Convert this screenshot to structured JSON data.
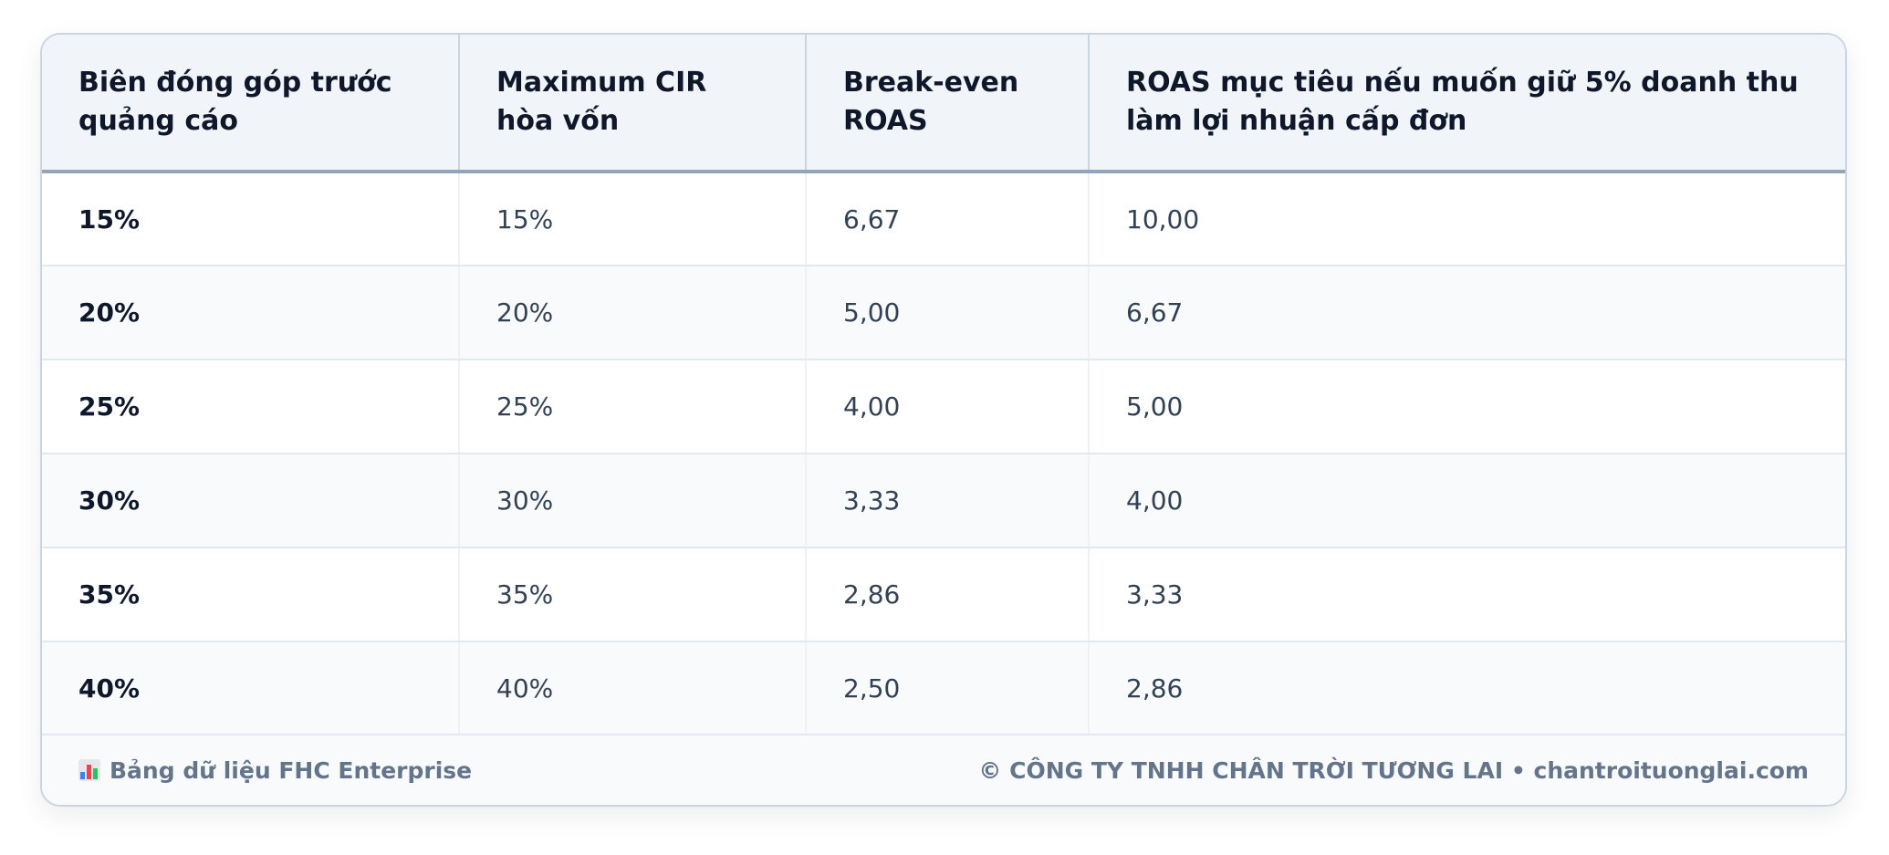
{
  "table": {
    "headers": [
      "Biên đóng góp trước quảng cáo",
      "Maximum CIR hòa vốn",
      "Break-even ROAS",
      "ROAS mục tiêu nếu muốn giữ 5% doanh thu làm lợi nhuận cấp đơn"
    ],
    "rows": [
      [
        "15%",
        "15%",
        "6,67",
        "10,00"
      ],
      [
        "20%",
        "20%",
        "5,00",
        "6,67"
      ],
      [
        "25%",
        "25%",
        "4,00",
        "5,00"
      ],
      [
        "30%",
        "30%",
        "3,33",
        "4,00"
      ],
      [
        "35%",
        "35%",
        "2,86",
        "3,33"
      ],
      [
        "40%",
        "40%",
        "2,50",
        "2,86"
      ]
    ]
  },
  "footer": {
    "icon": "bar-chart-icon",
    "left_text": "Bảng dữ liệu FHC Enterprise",
    "right_text": "© CÔNG TY TNHH CHÂN TRỜI TƯƠNG LAI • chantroituonglai.com"
  },
  "colors": {
    "header_bg": "#f1f5f9",
    "border": "#cbd5e1",
    "text_dark": "#0f172a",
    "text_body": "#334155",
    "footer_text": "#64748b"
  }
}
